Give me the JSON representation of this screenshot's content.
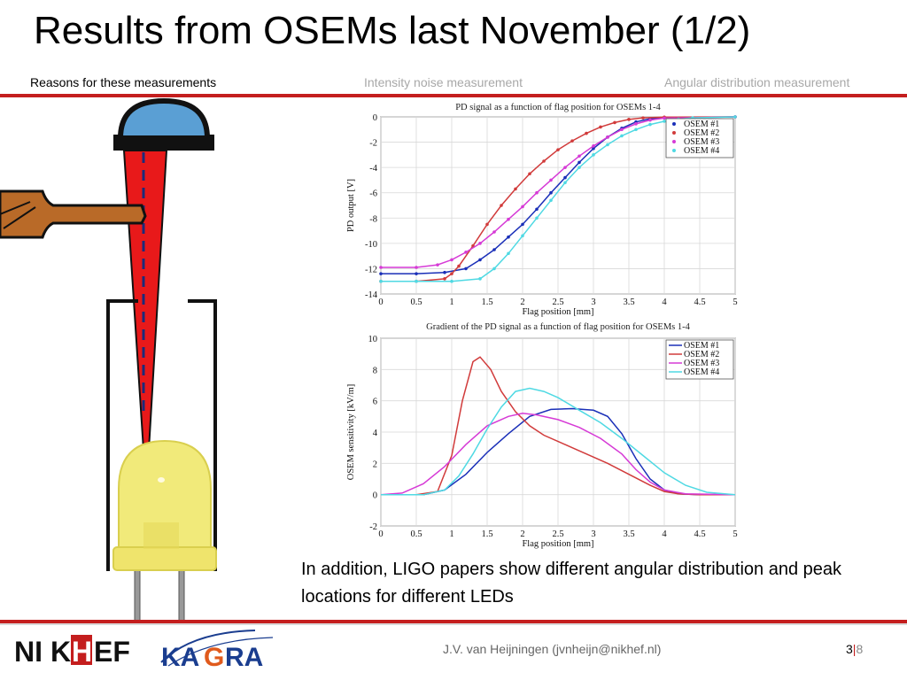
{
  "slide": {
    "title": "Results from OSEMs last November (1/2)",
    "nav": [
      {
        "label": "Reasons for these measurements",
        "active": true
      },
      {
        "label": "Intensity noise measurement",
        "active": false
      },
      {
        "label": "Angular distribution measurement",
        "active": false
      }
    ],
    "caption": "In addition, LIGO papers show different angular distribution and peak locations for different LEDs",
    "footer": {
      "author": "J.V. van Heijningen (jvnheijn@nikhef.nl)",
      "page": "3",
      "separator": "|",
      "total": "8"
    },
    "logos": {
      "nikhef": [
        "NI",
        "K",
        "H",
        "EF"
      ],
      "kagra": [
        "KA",
        "G",
        "RA"
      ]
    },
    "colors": {
      "accent_red": "#c41e1e",
      "led_yellow": "#f1ea7a",
      "beam_red": "#e8191a",
      "lens_blue": "#5a9fd4",
      "flag_brown": "#b96a28"
    }
  },
  "chart_data": [
    {
      "type": "line",
      "title": "PD signal as a function of flag position for OSEMs 1-4",
      "xlabel": "Flag position [mm]",
      "ylabel": "PD output [V]",
      "xlim": [
        0,
        5
      ],
      "ylim": [
        -14,
        0
      ],
      "xticks": [
        "0",
        "0.5",
        "1",
        "1.5",
        "2",
        "2.5",
        "3",
        "3.5",
        "4",
        "4.5",
        "5"
      ],
      "yticks": [
        "0",
        "-2",
        "-4",
        "-6",
        "-8",
        "-10",
        "-12",
        "-14"
      ],
      "grid": true,
      "legend": "top-right",
      "markers": true,
      "series": [
        {
          "name": "OSEM #1",
          "color": "#1a2fb8",
          "x": [
            0,
            0.5,
            0.9,
            1.2,
            1.4,
            1.6,
            1.8,
            2.0,
            2.2,
            2.4,
            2.6,
            2.8,
            3.0,
            3.2,
            3.4,
            3.6,
            3.8,
            4.0,
            5.0
          ],
          "y": [
            -12.4,
            -12.4,
            -12.3,
            -12.0,
            -11.3,
            -10.5,
            -9.5,
            -8.5,
            -7.3,
            -6.0,
            -4.8,
            -3.6,
            -2.5,
            -1.6,
            -0.9,
            -0.4,
            -0.15,
            -0.05,
            0
          ]
        },
        {
          "name": "OSEM #2",
          "color": "#d13b3b",
          "x": [
            0,
            0.5,
            0.9,
            1.0,
            1.1,
            1.3,
            1.5,
            1.7,
            1.9,
            2.1,
            2.3,
            2.5,
            2.7,
            2.9,
            3.1,
            3.3,
            3.5,
            3.7,
            4.0,
            5.0
          ],
          "y": [
            -13.0,
            -13.0,
            -12.8,
            -12.4,
            -11.8,
            -10.2,
            -8.5,
            -7.0,
            -5.7,
            -4.5,
            -3.5,
            -2.6,
            -1.9,
            -1.3,
            -0.8,
            -0.45,
            -0.2,
            -0.08,
            -0.02,
            0
          ]
        },
        {
          "name": "OSEM #3",
          "color": "#d63ad6",
          "x": [
            0,
            0.5,
            0.8,
            1.0,
            1.2,
            1.4,
            1.6,
            1.8,
            2.0,
            2.2,
            2.4,
            2.6,
            2.8,
            3.0,
            3.2,
            3.4,
            3.6,
            3.8,
            4.0,
            5.0
          ],
          "y": [
            -11.9,
            -11.9,
            -11.7,
            -11.3,
            -10.7,
            -10.0,
            -9.1,
            -8.1,
            -7.1,
            -6.0,
            -5.0,
            -4.0,
            -3.1,
            -2.3,
            -1.6,
            -1.0,
            -0.55,
            -0.25,
            -0.1,
            0
          ]
        },
        {
          "name": "OSEM #4",
          "color": "#4fd9e3",
          "x": [
            0,
            0.5,
            1.0,
            1.4,
            1.6,
            1.8,
            2.0,
            2.2,
            2.4,
            2.6,
            2.8,
            3.0,
            3.2,
            3.4,
            3.6,
            3.8,
            4.0,
            4.2,
            4.4,
            5.0
          ],
          "y": [
            -13.0,
            -13.0,
            -13.0,
            -12.8,
            -12.0,
            -10.8,
            -9.4,
            -8.0,
            -6.6,
            -5.2,
            -4.0,
            -3.0,
            -2.2,
            -1.5,
            -1.0,
            -0.6,
            -0.35,
            -0.18,
            -0.08,
            0
          ]
        }
      ]
    },
    {
      "type": "line",
      "title": "Gradient of the PD signal as a function of flag position for OSEMs 1-4",
      "xlabel": "Flag position [mm]",
      "ylabel": "OSEM sensitivity [kV/m]",
      "xlim": [
        0,
        5
      ],
      "ylim": [
        -2,
        10
      ],
      "xticks": [
        "0",
        "0.5",
        "1",
        "1.5",
        "2",
        "2.5",
        "3",
        "3.5",
        "4",
        "4.5",
        "5"
      ],
      "yticks": [
        "10",
        "8",
        "6",
        "4",
        "2",
        "0",
        "-2"
      ],
      "grid": true,
      "legend": "top-right",
      "markers": false,
      "series": [
        {
          "name": "OSEM #1",
          "color": "#1a2fb8",
          "x": [
            0,
            0.6,
            0.9,
            1.2,
            1.5,
            1.8,
            2.1,
            2.4,
            2.7,
            3.0,
            3.2,
            3.4,
            3.6,
            3.8,
            4.0,
            4.2,
            4.5,
            5.0
          ],
          "y": [
            0,
            0,
            0.3,
            1.3,
            2.7,
            3.9,
            5.0,
            5.45,
            5.5,
            5.4,
            5.0,
            3.9,
            2.3,
            1.0,
            0.3,
            0.05,
            0,
            0
          ]
        },
        {
          "name": "OSEM #2",
          "color": "#d13b3b",
          "x": [
            0,
            0.5,
            0.8,
            1.0,
            1.15,
            1.3,
            1.4,
            1.55,
            1.7,
            1.9,
            2.1,
            2.3,
            2.6,
            2.9,
            3.2,
            3.5,
            3.8,
            4.0,
            4.2,
            4.5,
            5.0
          ],
          "y": [
            0,
            0,
            0.2,
            2.5,
            6.0,
            8.5,
            8.8,
            8.0,
            6.6,
            5.3,
            4.4,
            3.8,
            3.2,
            2.6,
            2.0,
            1.3,
            0.6,
            0.2,
            0.05,
            0,
            0
          ]
        },
        {
          "name": "OSEM #3",
          "color": "#d63ad6",
          "x": [
            0,
            0.3,
            0.6,
            0.9,
            1.2,
            1.5,
            1.8,
            2.0,
            2.2,
            2.5,
            2.8,
            3.1,
            3.4,
            3.6,
            3.8,
            4.0,
            4.3,
            5.0
          ],
          "y": [
            0,
            0.1,
            0.7,
            1.8,
            3.2,
            4.4,
            5.0,
            5.2,
            5.1,
            4.8,
            4.3,
            3.6,
            2.6,
            1.6,
            0.8,
            0.3,
            0.05,
            0
          ]
        },
        {
          "name": "OSEM #4",
          "color": "#4fd9e3",
          "x": [
            0,
            0.6,
            0.9,
            1.1,
            1.3,
            1.5,
            1.7,
            1.9,
            2.1,
            2.3,
            2.5,
            2.8,
            3.1,
            3.4,
            3.7,
            4.0,
            4.3,
            4.6,
            5.0
          ],
          "y": [
            0,
            0,
            0.3,
            1.2,
            2.6,
            4.2,
            5.6,
            6.6,
            6.8,
            6.6,
            6.2,
            5.4,
            4.6,
            3.6,
            2.5,
            1.4,
            0.6,
            0.15,
            0
          ]
        }
      ]
    }
  ]
}
